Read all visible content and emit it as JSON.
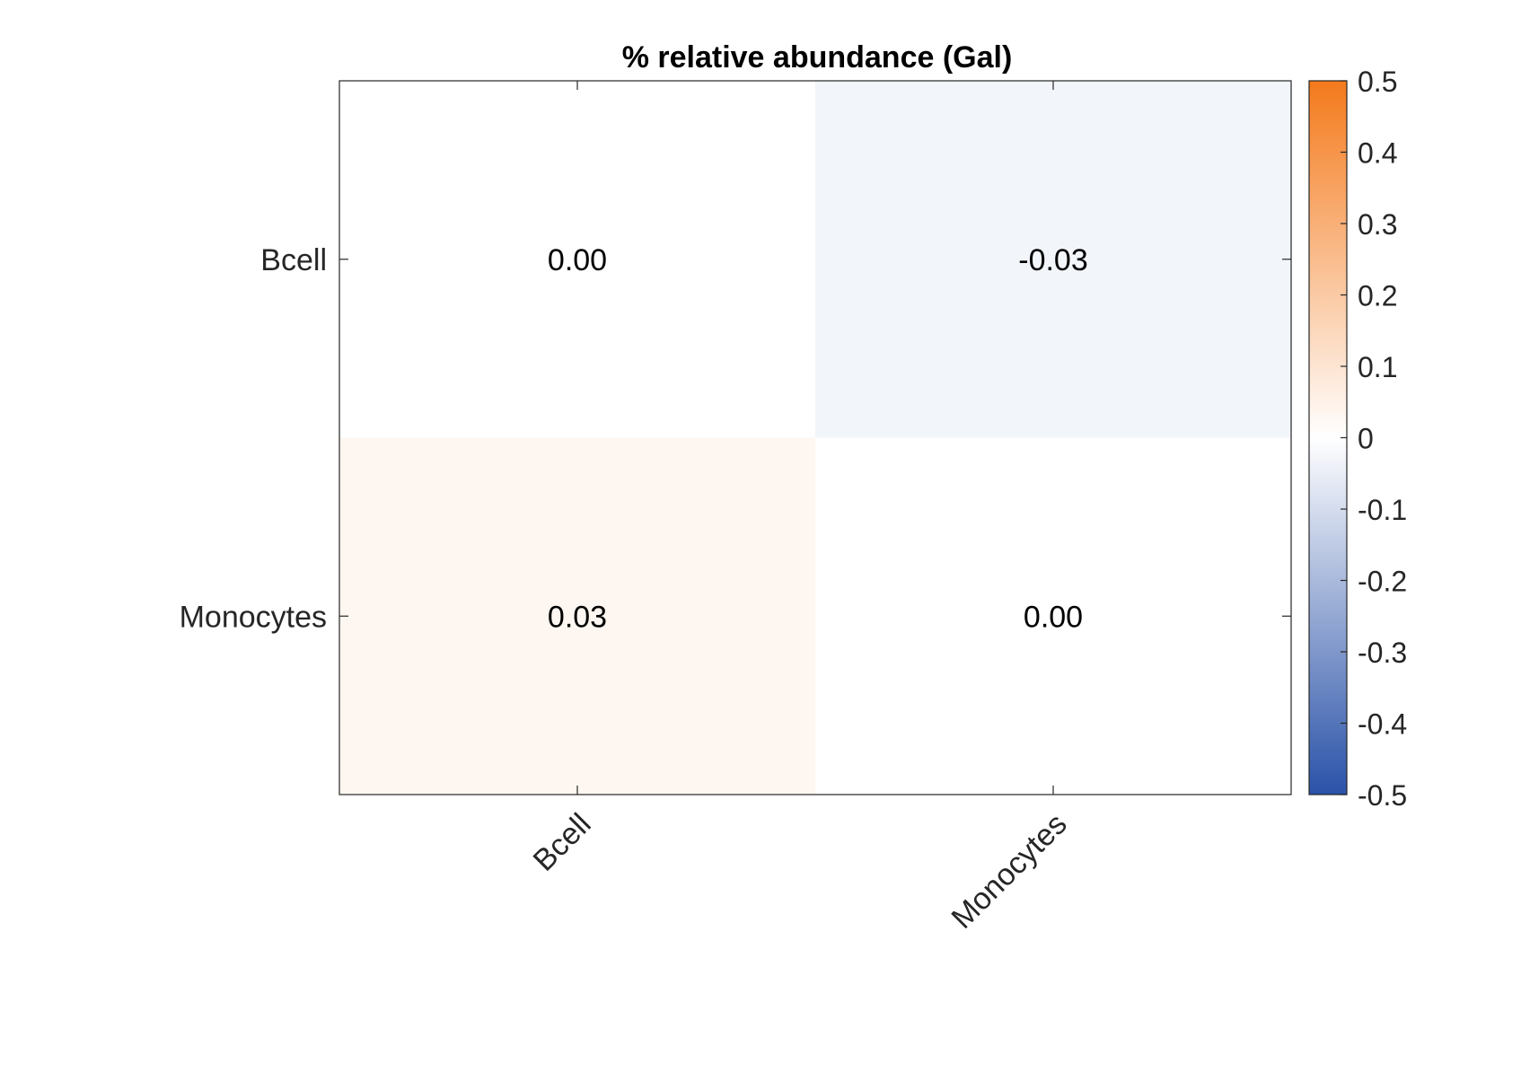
{
  "chart_data": {
    "type": "heatmap",
    "title": "% relative abundance (Gal)",
    "xlabel": "",
    "ylabel": "",
    "x_categories": [
      "Bcell",
      "Monocytes"
    ],
    "y_categories": [
      "Bcell",
      "Monocytes"
    ],
    "values": [
      [
        0.0,
        -0.03
      ],
      [
        0.03,
        0.0
      ]
    ],
    "cell_labels": [
      [
        "0.00",
        "-0.03"
      ],
      [
        "0.03",
        "0.00"
      ]
    ],
    "colorbar": {
      "min": -0.5,
      "max": 0.5,
      "ticks": [
        0.5,
        0.4,
        0.3,
        0.2,
        0.1,
        0,
        -0.1,
        -0.2,
        -0.3,
        -0.4,
        -0.5
      ],
      "tick_labels": [
        "0.5",
        "0.4",
        "0.3",
        "0.2",
        "0.1",
        "0",
        "-0.1",
        "-0.2",
        "-0.3",
        "-0.4",
        "-0.5"
      ],
      "colors": {
        "negative": "#2a52a8",
        "zero": "#ffffff",
        "positive": "#f47a1c"
      }
    },
    "grid": false
  }
}
